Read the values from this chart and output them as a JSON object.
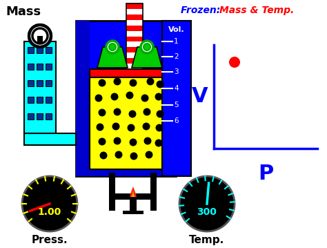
{
  "bg_color": "#ffffff",
  "title_frozen_color": "blue",
  "title_mass_temp_color": "red",
  "mass_label": "Mass",
  "press_label": "Press.",
  "temp_label": "Temp.",
  "vol_label": "Vol.",
  "v_label": "V",
  "p_label": "P",
  "vol_ticks": [
    1,
    2,
    3,
    4,
    5,
    6
  ],
  "pressure_value": "1.00",
  "temp_value": "300",
  "container_blue": "#0000ff",
  "cylinder_cyan": "#00ffff",
  "piston_red": "#ff0000",
  "gas_yellow": "#ffff00",
  "gauge_yellow": "#ffff00",
  "gauge_cyan": "#00ffff",
  "dot_color": "#ff0000",
  "axis_color": "#0000ff",
  "IW": 474,
  "IH": 359
}
